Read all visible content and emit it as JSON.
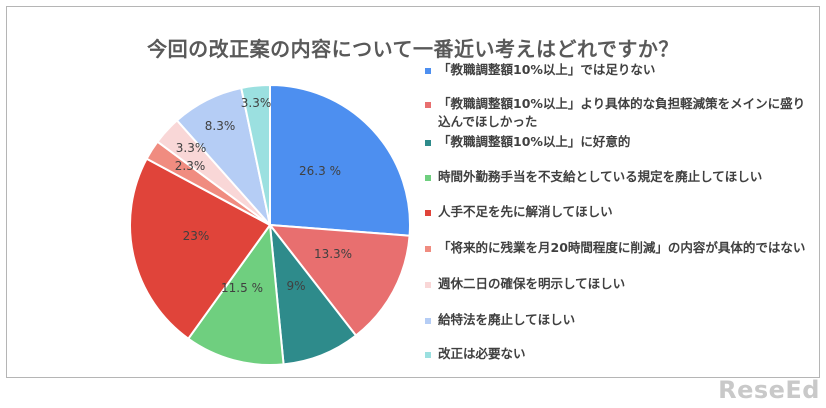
{
  "chart_data": {
    "type": "pie",
    "title": "今回の改正案の内容について一番近い考えはどれですか？",
    "categories": [
      "「教職調整額10%以上」では足りない",
      "「教職調整額10%以上」より具体的な負担軽減策をメインに盛り込んでほしかった",
      "「教職調整額10%以上」に好意的",
      "時間外勤務手当を不支給としている規定を廃止してほしい",
      "人手不足を先に解消してほしい",
      "「将来的に残業を月20時間程度に削減」の内容が具体的ではない",
      "週休二日の確保を明示してほしい",
      "給特法を廃止してほしい",
      "改正は必要ない"
    ],
    "values": [
      26.3,
      13.3,
      9,
      11.5,
      23,
      2.3,
      3.3,
      8.3,
      3.3
    ],
    "value_labels": [
      "26.3 %",
      "13.3%",
      "9%",
      "11.5 %",
      "23%",
      "2.3%",
      "3.3%",
      "8.3%",
      "3.3%"
    ],
    "colors": [
      "#4d8ff0",
      "#e86f6f",
      "#2e8b8b",
      "#6fcf7f",
      "#e0443a",
      "#f08c80",
      "#f9d7d7",
      "#b5cdf5",
      "#9be0e0"
    ],
    "legend_position": "right"
  },
  "logo_text": "ReseEd"
}
